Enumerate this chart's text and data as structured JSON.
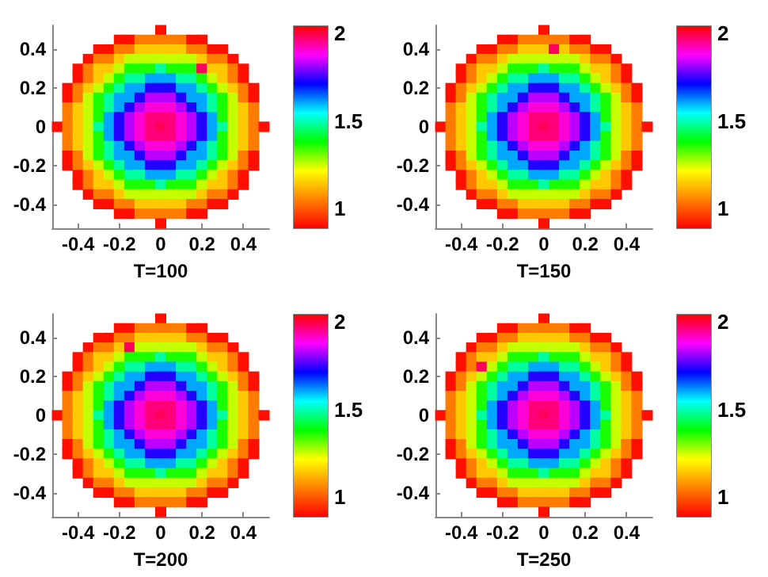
{
  "chart_data": [
    {
      "type": "heatmap",
      "xlabel": "T=100",
      "clim": [
        0.9,
        2.06
      ],
      "cticks": [
        1,
        1.5,
        2
      ],
      "categories": [
        null,
        null,
        "-0.4",
        null,
        null,
        null,
        "-0.2",
        null,
        null,
        null,
        "0",
        null,
        null,
        null,
        "0.2",
        null,
        null,
        null,
        "0.4",
        null,
        null
      ],
      "y_categories": [
        null,
        null,
        "0.4",
        null,
        null,
        null,
        "0.2",
        null,
        null,
        null,
        "0",
        null,
        null,
        null,
        "-0.2",
        null,
        null,
        null,
        "-0.4",
        null,
        null
      ],
      "cells": [
        [
          null,
          null,
          null,
          null,
          null,
          null,
          null,
          null,
          null,
          null,
          0.92,
          null,
          null,
          null,
          null,
          null,
          null,
          null,
          null,
          null,
          null
        ],
        [
          null,
          null,
          null,
          null,
          null,
          null,
          0.92,
          0.92,
          1.06,
          1.06,
          1.06,
          1.06,
          1.06,
          0.92,
          0.92,
          null,
          null,
          null,
          null,
          null,
          null
        ],
        [
          null,
          null,
          null,
          null,
          0.92,
          0.92,
          1.06,
          1.06,
          1.16,
          1.16,
          1.16,
          1.16,
          1.16,
          1.06,
          1.06,
          0.92,
          0.92,
          null,
          null,
          null,
          null
        ],
        [
          null,
          null,
          null,
          0.92,
          1.06,
          1.06,
          1.16,
          1.27,
          1.27,
          1.27,
          1.27,
          1.27,
          1.27,
          1.27,
          1.16,
          1.06,
          1.06,
          0.92,
          null,
          null,
          null
        ],
        [
          null,
          null,
          0.92,
          1.06,
          1.16,
          1.16,
          1.27,
          1.38,
          1.38,
          1.38,
          1.5,
          1.38,
          1.38,
          1.38,
          2.0,
          1.16,
          1.16,
          1.06,
          0.92,
          null,
          null
        ],
        [
          null,
          null,
          0.92,
          1.06,
          1.16,
          1.27,
          1.38,
          1.5,
          1.5,
          1.62,
          1.62,
          1.62,
          1.5,
          1.5,
          1.38,
          1.27,
          1.16,
          1.06,
          0.92,
          null,
          null
        ],
        [
          null,
          0.92,
          1.06,
          1.16,
          1.27,
          1.38,
          1.5,
          1.62,
          1.62,
          1.75,
          1.75,
          1.75,
          1.62,
          1.62,
          1.5,
          1.38,
          1.27,
          1.16,
          1.06,
          0.92,
          null
        ],
        [
          null,
          0.92,
          1.06,
          1.27,
          1.38,
          1.5,
          1.62,
          1.62,
          1.75,
          1.85,
          1.85,
          1.85,
          1.75,
          1.62,
          1.62,
          1.5,
          1.38,
          1.27,
          1.06,
          0.92,
          null
        ],
        [
          null,
          1.06,
          1.16,
          1.27,
          1.38,
          1.5,
          1.62,
          1.75,
          1.85,
          1.92,
          1.92,
          1.92,
          1.85,
          1.75,
          1.62,
          1.5,
          1.38,
          1.27,
          1.16,
          1.06,
          null
        ],
        [
          null,
          1.06,
          1.16,
          1.27,
          1.38,
          1.62,
          1.75,
          1.85,
          1.92,
          1.98,
          1.98,
          1.98,
          1.92,
          1.85,
          1.75,
          1.62,
          1.38,
          1.27,
          1.16,
          1.06,
          null
        ],
        [
          0.92,
          1.06,
          1.16,
          1.27,
          1.5,
          1.62,
          1.75,
          1.85,
          1.92,
          1.98,
          2.0,
          1.98,
          1.92,
          1.85,
          1.75,
          1.62,
          1.5,
          1.27,
          1.16,
          1.06,
          0.92
        ],
        [
          null,
          1.06,
          1.16,
          1.27,
          1.38,
          1.62,
          1.75,
          1.85,
          1.92,
          1.98,
          1.98,
          1.98,
          1.92,
          1.85,
          1.75,
          1.62,
          1.38,
          1.27,
          1.16,
          1.06,
          null
        ],
        [
          null,
          1.06,
          1.16,
          1.27,
          1.38,
          1.5,
          1.62,
          1.75,
          1.85,
          1.92,
          1.92,
          1.92,
          1.85,
          1.75,
          1.62,
          1.5,
          1.38,
          1.27,
          1.16,
          1.06,
          null
        ],
        [
          null,
          0.92,
          1.06,
          1.27,
          1.38,
          1.5,
          1.62,
          1.62,
          1.75,
          1.85,
          1.85,
          1.85,
          1.75,
          1.62,
          1.62,
          1.5,
          1.38,
          1.27,
          1.06,
          0.92,
          null
        ],
        [
          null,
          0.92,
          1.06,
          1.16,
          1.27,
          1.38,
          1.5,
          1.62,
          1.62,
          1.75,
          1.75,
          1.75,
          1.62,
          1.62,
          1.5,
          1.38,
          1.27,
          1.16,
          1.06,
          0.92,
          null
        ],
        [
          null,
          null,
          0.92,
          1.06,
          1.16,
          1.27,
          1.38,
          1.5,
          1.5,
          1.62,
          1.62,
          1.62,
          1.5,
          1.5,
          1.38,
          1.27,
          1.16,
          1.06,
          0.92,
          null,
          null
        ],
        [
          null,
          null,
          0.92,
          1.06,
          1.16,
          1.16,
          1.27,
          1.38,
          1.38,
          1.38,
          1.5,
          1.38,
          1.38,
          1.38,
          1.27,
          1.16,
          1.16,
          1.06,
          0.92,
          null,
          null
        ],
        [
          null,
          null,
          null,
          0.92,
          1.06,
          1.06,
          1.16,
          1.27,
          1.27,
          1.27,
          1.27,
          1.27,
          1.27,
          1.27,
          1.16,
          1.06,
          1.06,
          0.92,
          null,
          null,
          null
        ],
        [
          null,
          null,
          null,
          null,
          0.92,
          0.92,
          1.06,
          1.06,
          1.16,
          1.16,
          1.16,
          1.16,
          1.16,
          1.06,
          1.06,
          0.92,
          0.92,
          null,
          null,
          null,
          null
        ],
        [
          null,
          null,
          null,
          null,
          null,
          null,
          0.92,
          0.92,
          1.06,
          1.06,
          1.06,
          1.06,
          1.06,
          0.92,
          0.92,
          null,
          null,
          null,
          null,
          null,
          null
        ],
        [
          null,
          null,
          null,
          null,
          null,
          null,
          null,
          null,
          null,
          null,
          0.92,
          null,
          null,
          null,
          null,
          null,
          null,
          null,
          null,
          null,
          null
        ]
      ]
    },
    {
      "type": "heatmap",
      "xlabel": "T=150",
      "clim": [
        0.9,
        2.06
      ],
      "cticks": [
        1,
        1.5,
        2
      ],
      "categories": [
        null,
        null,
        "-0.4",
        null,
        null,
        null,
        "-0.2",
        null,
        null,
        null,
        "0",
        null,
        null,
        null,
        "0.2",
        null,
        null,
        null,
        "0.4",
        null,
        null
      ],
      "y_categories": [
        null,
        null,
        "0.4",
        null,
        null,
        null,
        "0.2",
        null,
        null,
        null,
        "0",
        null,
        null,
        null,
        "-0.2",
        null,
        null,
        null,
        "-0.4",
        null,
        null
      ],
      "cells": [
        [
          null,
          null,
          null,
          null,
          null,
          null,
          null,
          null,
          null,
          null,
          0.92,
          null,
          null,
          null,
          null,
          null,
          null,
          null,
          null,
          null,
          null
        ],
        [
          null,
          null,
          null,
          null,
          null,
          null,
          0.92,
          0.92,
          1.06,
          1.06,
          1.06,
          1.06,
          1.06,
          0.92,
          0.92,
          null,
          null,
          null,
          null,
          null,
          null
        ],
        [
          null,
          null,
          null,
          null,
          0.92,
          0.92,
          1.06,
          1.06,
          1.16,
          1.16,
          1.16,
          2.0,
          1.16,
          1.06,
          1.06,
          0.92,
          0.92,
          null,
          null,
          null,
          null
        ],
        [
          null,
          null,
          null,
          0.92,
          1.06,
          1.06,
          1.16,
          1.27,
          1.27,
          1.27,
          1.27,
          1.27,
          1.27,
          1.27,
          1.16,
          1.06,
          1.06,
          0.92,
          null,
          null,
          null
        ],
        [
          null,
          null,
          0.92,
          1.06,
          1.16,
          1.16,
          1.27,
          1.38,
          1.38,
          1.38,
          1.5,
          1.38,
          1.38,
          1.38,
          1.27,
          1.16,
          1.16,
          1.06,
          0.92,
          null,
          null
        ],
        [
          null,
          null,
          0.92,
          1.06,
          1.16,
          1.27,
          1.38,
          1.5,
          1.5,
          1.62,
          1.62,
          1.62,
          1.5,
          1.5,
          1.38,
          1.27,
          1.16,
          1.06,
          0.92,
          null,
          null
        ],
        [
          null,
          0.92,
          1.06,
          1.16,
          1.27,
          1.38,
          1.5,
          1.62,
          1.62,
          1.75,
          1.75,
          1.75,
          1.62,
          1.62,
          1.5,
          1.38,
          1.27,
          1.16,
          1.06,
          0.92,
          null
        ],
        [
          null,
          0.92,
          1.06,
          1.27,
          1.38,
          1.5,
          1.62,
          1.62,
          1.75,
          1.85,
          1.85,
          1.85,
          1.75,
          1.62,
          1.62,
          1.5,
          1.38,
          1.27,
          1.06,
          0.92,
          null
        ],
        [
          null,
          1.06,
          1.16,
          1.27,
          1.38,
          1.5,
          1.62,
          1.75,
          1.85,
          1.92,
          1.92,
          1.92,
          1.85,
          1.75,
          1.62,
          1.5,
          1.38,
          1.27,
          1.16,
          1.06,
          null
        ],
        [
          null,
          1.06,
          1.16,
          1.27,
          1.38,
          1.62,
          1.75,
          1.85,
          1.92,
          1.98,
          1.98,
          1.98,
          1.92,
          1.85,
          1.75,
          1.62,
          1.38,
          1.27,
          1.16,
          1.06,
          null
        ],
        [
          0.92,
          1.06,
          1.16,
          1.27,
          1.5,
          1.62,
          1.75,
          1.85,
          1.92,
          1.98,
          2.0,
          1.98,
          1.92,
          1.85,
          1.75,
          1.62,
          1.5,
          1.27,
          1.16,
          1.06,
          0.92
        ],
        [
          null,
          1.06,
          1.16,
          1.27,
          1.38,
          1.62,
          1.75,
          1.85,
          1.92,
          1.98,
          1.98,
          1.98,
          1.92,
          1.85,
          1.75,
          1.62,
          1.38,
          1.27,
          1.16,
          1.06,
          null
        ],
        [
          null,
          1.06,
          1.16,
          1.27,
          1.38,
          1.5,
          1.62,
          1.75,
          1.85,
          1.92,
          1.92,
          1.92,
          1.85,
          1.75,
          1.62,
          1.5,
          1.38,
          1.27,
          1.16,
          1.06,
          null
        ],
        [
          null,
          0.92,
          1.06,
          1.27,
          1.38,
          1.5,
          1.62,
          1.62,
          1.75,
          1.85,
          1.85,
          1.85,
          1.75,
          1.62,
          1.62,
          1.5,
          1.38,
          1.27,
          1.06,
          0.92,
          null
        ],
        [
          null,
          0.92,
          1.06,
          1.16,
          1.27,
          1.38,
          1.5,
          1.62,
          1.62,
          1.75,
          1.75,
          1.75,
          1.62,
          1.62,
          1.5,
          1.38,
          1.27,
          1.16,
          1.06,
          0.92,
          null
        ],
        [
          null,
          null,
          0.92,
          1.06,
          1.16,
          1.27,
          1.38,
          1.5,
          1.5,
          1.62,
          1.62,
          1.62,
          1.5,
          1.5,
          1.38,
          1.27,
          1.16,
          1.06,
          0.92,
          null,
          null
        ],
        [
          null,
          null,
          0.92,
          1.06,
          1.16,
          1.16,
          1.27,
          1.38,
          1.38,
          1.38,
          1.5,
          1.38,
          1.38,
          1.38,
          1.27,
          1.16,
          1.16,
          1.06,
          0.92,
          null,
          null
        ],
        [
          null,
          null,
          null,
          0.92,
          1.06,
          1.06,
          1.16,
          1.27,
          1.27,
          1.27,
          1.27,
          1.27,
          1.27,
          1.27,
          1.16,
          1.06,
          1.06,
          0.92,
          null,
          null,
          null
        ],
        [
          null,
          null,
          null,
          null,
          0.92,
          0.92,
          1.06,
          1.06,
          1.16,
          1.16,
          1.16,
          1.16,
          1.16,
          1.06,
          1.06,
          0.92,
          0.92,
          null,
          null,
          null,
          null
        ],
        [
          null,
          null,
          null,
          null,
          null,
          null,
          0.92,
          0.92,
          1.06,
          1.06,
          1.06,
          1.06,
          1.06,
          0.92,
          0.92,
          null,
          null,
          null,
          null,
          null,
          null
        ],
        [
          null,
          null,
          null,
          null,
          null,
          null,
          null,
          null,
          null,
          null,
          0.92,
          null,
          null,
          null,
          null,
          null,
          null,
          null,
          null,
          null,
          null
        ]
      ]
    },
    {
      "type": "heatmap",
      "xlabel": "T=200",
      "clim": [
        0.9,
        2.06
      ],
      "cticks": [
        1,
        1.5,
        2
      ],
      "categories": [
        null,
        null,
        "-0.4",
        null,
        null,
        null,
        "-0.2",
        null,
        null,
        null,
        "0",
        null,
        null,
        null,
        "0.2",
        null,
        null,
        null,
        "0.4",
        null,
        null
      ],
      "y_categories": [
        null,
        null,
        "0.4",
        null,
        null,
        null,
        "0.2",
        null,
        null,
        null,
        "0",
        null,
        null,
        null,
        "-0.2",
        null,
        null,
        null,
        "-0.4",
        null,
        null
      ],
      "cells": [
        [
          null,
          null,
          null,
          null,
          null,
          null,
          null,
          null,
          null,
          null,
          0.92,
          null,
          null,
          null,
          null,
          null,
          null,
          null,
          null,
          null,
          null
        ],
        [
          null,
          null,
          null,
          null,
          null,
          null,
          0.92,
          0.92,
          1.06,
          1.06,
          1.06,
          1.06,
          1.06,
          0.92,
          0.92,
          null,
          null,
          null,
          null,
          null,
          null
        ],
        [
          null,
          null,
          null,
          null,
          0.92,
          0.92,
          1.06,
          1.06,
          1.16,
          1.16,
          1.16,
          1.16,
          1.16,
          1.06,
          1.06,
          0.92,
          0.92,
          null,
          null,
          null,
          null
        ],
        [
          null,
          null,
          null,
          0.92,
          1.06,
          1.06,
          1.16,
          2.0,
          1.27,
          1.27,
          1.27,
          1.27,
          1.27,
          1.27,
          1.16,
          1.06,
          1.06,
          0.92,
          null,
          null,
          null
        ],
        [
          null,
          null,
          0.92,
          1.06,
          1.16,
          1.16,
          1.27,
          1.38,
          1.38,
          1.38,
          1.5,
          1.38,
          1.38,
          1.38,
          1.27,
          1.16,
          1.16,
          1.06,
          0.92,
          null,
          null
        ],
        [
          null,
          null,
          0.92,
          1.06,
          1.16,
          1.27,
          1.38,
          1.5,
          1.5,
          1.62,
          1.62,
          1.62,
          1.5,
          1.5,
          1.38,
          1.27,
          1.16,
          1.06,
          0.92,
          null,
          null
        ],
        [
          null,
          0.92,
          1.06,
          1.16,
          1.27,
          1.38,
          1.5,
          1.62,
          1.62,
          1.75,
          1.75,
          1.75,
          1.62,
          1.62,
          1.5,
          1.38,
          1.27,
          1.16,
          1.06,
          0.92,
          null
        ],
        [
          null,
          0.92,
          1.06,
          1.27,
          1.38,
          1.5,
          1.62,
          1.62,
          1.75,
          1.85,
          1.85,
          1.85,
          1.75,
          1.62,
          1.62,
          1.5,
          1.38,
          1.27,
          1.06,
          0.92,
          null
        ],
        [
          null,
          1.06,
          1.16,
          1.27,
          1.38,
          1.5,
          1.62,
          1.75,
          1.85,
          1.92,
          1.92,
          1.92,
          1.85,
          1.75,
          1.62,
          1.5,
          1.38,
          1.27,
          1.16,
          1.06,
          null
        ],
        [
          null,
          1.06,
          1.16,
          1.27,
          1.38,
          1.62,
          1.75,
          1.85,
          1.92,
          1.98,
          1.98,
          1.98,
          1.92,
          1.85,
          1.75,
          1.62,
          1.38,
          1.27,
          1.16,
          1.06,
          null
        ],
        [
          0.92,
          1.06,
          1.16,
          1.27,
          1.5,
          1.62,
          1.75,
          1.85,
          1.92,
          1.98,
          2.0,
          1.98,
          1.92,
          1.85,
          1.75,
          1.62,
          1.5,
          1.27,
          1.16,
          1.06,
          0.92
        ],
        [
          null,
          1.06,
          1.16,
          1.27,
          1.38,
          1.62,
          1.75,
          1.85,
          1.92,
          1.98,
          1.98,
          1.98,
          1.92,
          1.85,
          1.75,
          1.62,
          1.38,
          1.27,
          1.16,
          1.06,
          null
        ],
        [
          null,
          1.06,
          1.16,
          1.27,
          1.38,
          1.5,
          1.62,
          1.75,
          1.85,
          1.92,
          1.92,
          1.92,
          1.85,
          1.75,
          1.62,
          1.5,
          1.38,
          1.27,
          1.16,
          1.06,
          null
        ],
        [
          null,
          0.92,
          1.06,
          1.27,
          1.38,
          1.5,
          1.62,
          1.62,
          1.75,
          1.85,
          1.85,
          1.85,
          1.75,
          1.62,
          1.62,
          1.5,
          1.38,
          1.27,
          1.06,
          0.92,
          null
        ],
        [
          null,
          0.92,
          1.06,
          1.16,
          1.27,
          1.38,
          1.5,
          1.62,
          1.62,
          1.75,
          1.75,
          1.75,
          1.62,
          1.62,
          1.5,
          1.38,
          1.27,
          1.16,
          1.06,
          0.92,
          null
        ],
        [
          null,
          null,
          0.92,
          1.06,
          1.16,
          1.27,
          1.38,
          1.5,
          1.5,
          1.62,
          1.62,
          1.62,
          1.5,
          1.5,
          1.38,
          1.27,
          1.16,
          1.06,
          0.92,
          null,
          null
        ],
        [
          null,
          null,
          0.92,
          1.06,
          1.16,
          1.16,
          1.27,
          1.38,
          1.38,
          1.38,
          1.5,
          1.38,
          1.38,
          1.38,
          1.27,
          1.16,
          1.16,
          1.06,
          0.92,
          null,
          null
        ],
        [
          null,
          null,
          null,
          0.92,
          1.06,
          1.06,
          1.16,
          1.27,
          1.27,
          1.27,
          1.27,
          1.27,
          1.27,
          1.27,
          1.16,
          1.06,
          1.06,
          0.92,
          null,
          null,
          null
        ],
        [
          null,
          null,
          null,
          null,
          0.92,
          0.92,
          1.06,
          1.06,
          1.16,
          1.16,
          1.16,
          1.16,
          1.16,
          1.06,
          1.06,
          0.92,
          0.92,
          null,
          null,
          null,
          null
        ],
        [
          null,
          null,
          null,
          null,
          null,
          null,
          0.92,
          0.92,
          1.06,
          1.06,
          1.06,
          1.06,
          1.06,
          0.92,
          0.92,
          null,
          null,
          null,
          null,
          null,
          null
        ],
        [
          null,
          null,
          null,
          null,
          null,
          null,
          null,
          null,
          null,
          null,
          0.92,
          null,
          null,
          null,
          null,
          null,
          null,
          null,
          null,
          null,
          null
        ]
      ]
    },
    {
      "type": "heatmap",
      "xlabel": "T=250",
      "clim": [
        0.9,
        2.06
      ],
      "cticks": [
        1,
        1.5,
        2
      ],
      "categories": [
        null,
        null,
        "-0.4",
        null,
        null,
        null,
        "-0.2",
        null,
        null,
        null,
        "0",
        null,
        null,
        null,
        "0.2",
        null,
        null,
        null,
        "0.4",
        null,
        null
      ],
      "y_categories": [
        null,
        null,
        "0.4",
        null,
        null,
        null,
        "0.2",
        null,
        null,
        null,
        "0",
        null,
        null,
        null,
        "-0.2",
        null,
        null,
        null,
        "-0.4",
        null,
        null
      ],
      "cells": [
        [
          null,
          null,
          null,
          null,
          null,
          null,
          null,
          null,
          null,
          null,
          0.92,
          null,
          null,
          null,
          null,
          null,
          null,
          null,
          null,
          null,
          null
        ],
        [
          null,
          null,
          null,
          null,
          null,
          null,
          0.92,
          0.92,
          1.06,
          1.06,
          1.06,
          1.06,
          1.06,
          0.92,
          0.92,
          null,
          null,
          null,
          null,
          null,
          null
        ],
        [
          null,
          null,
          null,
          null,
          0.92,
          0.92,
          1.06,
          1.06,
          1.16,
          1.16,
          1.16,
          1.16,
          1.16,
          1.06,
          1.06,
          0.92,
          0.92,
          null,
          null,
          null,
          null
        ],
        [
          null,
          null,
          null,
          0.92,
          1.06,
          1.06,
          1.16,
          1.27,
          1.27,
          1.27,
          1.27,
          1.27,
          1.27,
          1.27,
          1.16,
          1.06,
          1.06,
          0.92,
          null,
          null,
          null
        ],
        [
          null,
          null,
          0.92,
          1.06,
          1.16,
          1.16,
          1.27,
          1.38,
          1.38,
          1.38,
          1.5,
          1.38,
          1.38,
          1.38,
          1.27,
          1.16,
          1.16,
          1.06,
          0.92,
          null,
          null
        ],
        [
          null,
          null,
          0.92,
          1.06,
          2.0,
          1.27,
          1.38,
          1.5,
          1.5,
          1.62,
          1.62,
          1.62,
          1.5,
          1.5,
          1.38,
          1.27,
          1.16,
          1.06,
          0.92,
          null,
          null
        ],
        [
          null,
          0.92,
          1.06,
          1.16,
          1.27,
          1.38,
          1.5,
          1.62,
          1.62,
          1.75,
          1.75,
          1.75,
          1.62,
          1.62,
          1.5,
          1.38,
          1.27,
          1.16,
          1.06,
          0.92,
          null
        ],
        [
          null,
          0.92,
          1.06,
          1.27,
          1.38,
          1.5,
          1.62,
          1.62,
          1.75,
          1.85,
          1.85,
          1.85,
          1.75,
          1.62,
          1.62,
          1.5,
          1.38,
          1.27,
          1.06,
          0.92,
          null
        ],
        [
          null,
          1.06,
          1.16,
          1.27,
          1.38,
          1.5,
          1.62,
          1.75,
          1.85,
          1.92,
          1.92,
          1.92,
          1.85,
          1.75,
          1.62,
          1.5,
          1.38,
          1.27,
          1.16,
          1.06,
          null
        ],
        [
          null,
          1.06,
          1.16,
          1.27,
          1.38,
          1.62,
          1.75,
          1.85,
          1.92,
          1.98,
          1.98,
          1.98,
          1.92,
          1.85,
          1.75,
          1.62,
          1.38,
          1.27,
          1.16,
          1.06,
          null
        ],
        [
          0.92,
          1.06,
          1.16,
          1.27,
          1.5,
          1.62,
          1.75,
          1.85,
          1.92,
          1.98,
          2.0,
          1.98,
          1.92,
          1.85,
          1.75,
          1.62,
          1.5,
          1.27,
          1.16,
          1.06,
          0.92
        ],
        [
          null,
          1.06,
          1.16,
          1.27,
          1.38,
          1.62,
          1.75,
          1.85,
          1.92,
          1.98,
          1.98,
          1.98,
          1.92,
          1.85,
          1.75,
          1.62,
          1.38,
          1.27,
          1.16,
          1.06,
          null
        ],
        [
          null,
          1.06,
          1.16,
          1.27,
          1.38,
          1.5,
          1.62,
          1.75,
          1.85,
          1.92,
          1.92,
          1.92,
          1.85,
          1.75,
          1.62,
          1.5,
          1.38,
          1.27,
          1.16,
          1.06,
          null
        ],
        [
          null,
          0.92,
          1.06,
          1.27,
          1.38,
          1.5,
          1.62,
          1.62,
          1.75,
          1.85,
          1.85,
          1.85,
          1.75,
          1.62,
          1.62,
          1.5,
          1.38,
          1.27,
          1.06,
          0.92,
          null
        ],
        [
          null,
          0.92,
          1.06,
          1.16,
          1.27,
          1.38,
          1.5,
          1.62,
          1.62,
          1.75,
          1.75,
          1.75,
          1.62,
          1.62,
          1.5,
          1.38,
          1.27,
          1.16,
          1.06,
          0.92,
          null
        ],
        [
          null,
          null,
          0.92,
          1.06,
          1.16,
          1.27,
          1.38,
          1.5,
          1.5,
          1.62,
          1.62,
          1.62,
          1.5,
          1.5,
          1.38,
          1.27,
          1.16,
          1.06,
          0.92,
          null,
          null
        ],
        [
          null,
          null,
          0.92,
          1.06,
          1.16,
          1.16,
          1.27,
          1.38,
          1.38,
          1.38,
          1.5,
          1.38,
          1.38,
          1.38,
          1.27,
          1.16,
          1.16,
          1.06,
          0.92,
          null,
          null
        ],
        [
          null,
          null,
          null,
          0.92,
          1.06,
          1.06,
          1.16,
          1.27,
          1.27,
          1.27,
          1.27,
          1.27,
          1.27,
          1.27,
          1.16,
          1.06,
          1.06,
          0.92,
          null,
          null,
          null
        ],
        [
          null,
          null,
          null,
          null,
          0.92,
          0.92,
          1.06,
          1.06,
          1.16,
          1.16,
          1.16,
          1.16,
          1.16,
          1.06,
          1.06,
          0.92,
          0.92,
          null,
          null,
          null,
          null
        ],
        [
          null,
          null,
          null,
          null,
          null,
          null,
          0.92,
          0.92,
          1.06,
          1.06,
          1.06,
          1.06,
          1.06,
          0.92,
          0.92,
          null,
          null,
          null,
          null,
          null,
          null
        ],
        [
          null,
          null,
          null,
          null,
          null,
          null,
          null,
          null,
          null,
          null,
          0.92,
          null,
          null,
          null,
          null,
          null,
          null,
          null,
          null,
          null,
          null
        ]
      ]
    }
  ]
}
